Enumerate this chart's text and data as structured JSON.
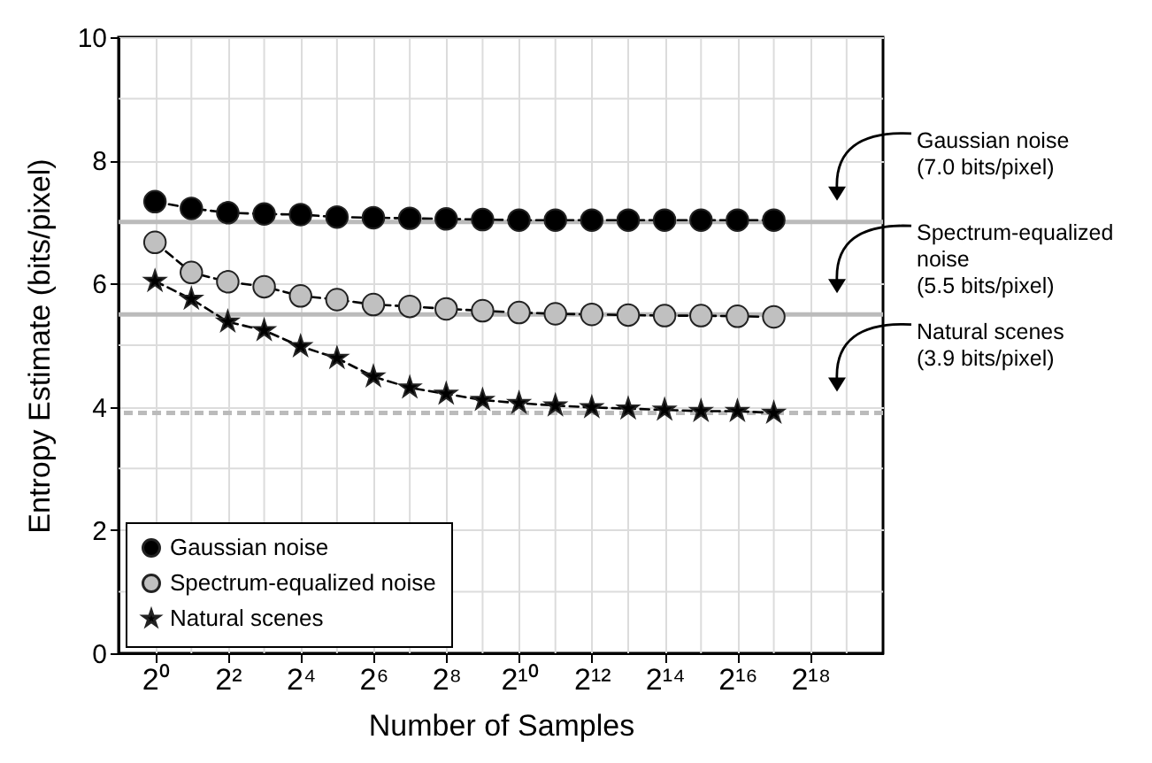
{
  "chart_data": {
    "type": "line",
    "xlabel": "Number of Samples",
    "ylabel": "Entropy Estimate (bits/pixel)",
    "x": [
      1,
      2,
      4,
      8,
      16,
      32,
      64,
      128,
      256,
      512,
      1024,
      2048,
      4096,
      8192,
      16384,
      32768,
      65536,
      131072
    ],
    "log": "x",
    "series": [
      {
        "name": "Gaussian noise",
        "color": "#000000",
        "marker": "circle",
        "values": [
          7.33,
          7.22,
          7.15,
          7.13,
          7.12,
          7.08,
          7.07,
          7.06,
          7.05,
          7.04,
          7.03,
          7.03,
          7.03,
          7.03,
          7.03,
          7.03,
          7.03,
          7.03
        ]
      },
      {
        "name": "Spectrum-equalized noise",
        "color": "#c0c0c0",
        "marker": "circle",
        "values": [
          6.67,
          6.18,
          6.03,
          5.95,
          5.8,
          5.74,
          5.66,
          5.63,
          5.59,
          5.56,
          5.53,
          5.51,
          5.5,
          5.49,
          5.48,
          5.48,
          5.47,
          5.46
        ]
      },
      {
        "name": "Natural scenes",
        "color": "#000000",
        "marker": "star",
        "values": [
          6.04,
          5.75,
          5.38,
          5.24,
          4.98,
          4.79,
          4.49,
          4.31,
          4.21,
          4.11,
          4.06,
          4.02,
          3.99,
          3.97,
          3.95,
          3.93,
          3.93,
          3.9
        ]
      }
    ],
    "line_style": "dashed",
    "xlim": [
      0.5,
      1048576
    ],
    "xticks": [
      {
        "value": 1,
        "label": "2⁰"
      },
      {
        "value": 2,
        "label": null
      },
      {
        "value": 4,
        "label": "2²"
      },
      {
        "value": 8,
        "label": null
      },
      {
        "value": 16,
        "label": "2⁴"
      },
      {
        "value": 32,
        "label": null
      },
      {
        "value": 64,
        "label": "2⁶"
      },
      {
        "value": 128,
        "label": null
      },
      {
        "value": 256,
        "label": "2⁸"
      },
      {
        "value": 512,
        "label": null
      },
      {
        "value": 1024,
        "label": "2¹⁰"
      },
      {
        "value": 2048,
        "label": null
      },
      {
        "value": 4096,
        "label": "2¹²"
      },
      {
        "value": 8192,
        "label": null
      },
      {
        "value": 16384,
        "label": "2¹⁴"
      },
      {
        "value": 32768,
        "label": null
      },
      {
        "value": 65536,
        "label": "2¹⁶"
      },
      {
        "value": 131072,
        "label": null
      },
      {
        "value": 262144,
        "label": "2¹⁸"
      },
      {
        "value": 524288,
        "label": null
      }
    ],
    "ylim": [
      0,
      10
    ],
    "yticks": [
      0,
      {
        "value": 1,
        "label": null
      },
      2,
      {
        "value": 3,
        "label": null
      },
      4,
      {
        "value": 5,
        "label": null
      },
      6,
      {
        "value": 7,
        "label": null
      },
      8,
      {
        "value": 9,
        "label": null
      },
      10
    ],
    "grid": true,
    "legend": "bottom left",
    "ref_lines": [
      {
        "axis": "y",
        "value": 7.0,
        "label": "Gaussian noise (7.0 bits/pixel)",
        "color": "#bbbbbb",
        "line_style": "solid"
      },
      {
        "axis": "y",
        "value": 5.5,
        "label": "Spectrum-equalized noise (5.5 bits/pixel)",
        "color": "#bbbbbb",
        "line_style": "solid"
      },
      {
        "axis": "y",
        "value": 3.9,
        "label": "Natural scenes (3.9 bits/pixel)",
        "color": "#bbbbbb",
        "line_style": "dashed"
      }
    ]
  }
}
